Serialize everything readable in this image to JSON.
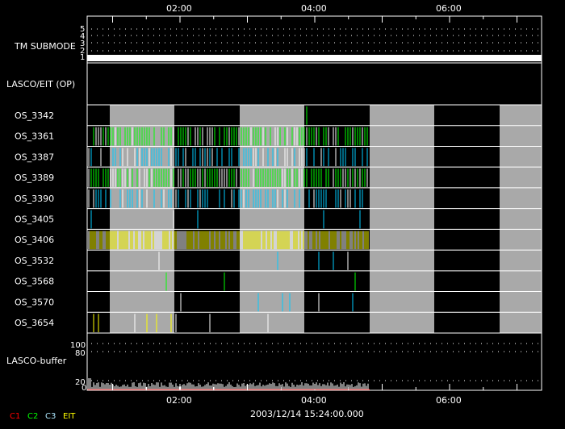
{
  "chart_data": {
    "type": "timeline",
    "time_ticks": [
      "02:00",
      "04:00",
      "06:00"
    ],
    "date_label": "2003/12/14 15:24:00.000",
    "panels": {
      "tm_submode": {
        "label": "TM SUBMODE",
        "ticks": [
          "1",
          "2",
          "3",
          "4",
          "5"
        ],
        "value": 1
      },
      "lasco_eit": {
        "label": "LASCO/EIT (OP)"
      },
      "lasco_buffer": {
        "label": "LASCO-buffer",
        "ticks": [
          "0",
          "20",
          "80",
          "100"
        ]
      }
    },
    "os_rows": [
      {
        "label": "OS_3342",
        "color": "#00ff00"
      },
      {
        "label": "OS_3361",
        "color": "#00ff00"
      },
      {
        "label": "OS_3387",
        "color": "#00ccff"
      },
      {
        "label": "OS_3389",
        "color": "#00ff00"
      },
      {
        "label": "OS_3390",
        "color": "#00ccff"
      },
      {
        "label": "OS_3405",
        "color": "#00ccff"
      },
      {
        "label": "OS_3406",
        "color": "#ffff00"
      },
      {
        "label": "OS_3532",
        "color": "#00ccff"
      },
      {
        "label": "OS_3568",
        "color": "#00ff00"
      },
      {
        "label": "OS_3570",
        "color": "#00ccff"
      },
      {
        "label": "OS_3654",
        "color": "#ffff00"
      }
    ],
    "legend": [
      {
        "name": "C1",
        "color": "#ff0000"
      },
      {
        "name": "C2",
        "color": "#00ff00"
      },
      {
        "name": "C3",
        "color": "#aee8ff"
      },
      {
        "name": "EIT",
        "color": "#ffff00"
      }
    ]
  }
}
